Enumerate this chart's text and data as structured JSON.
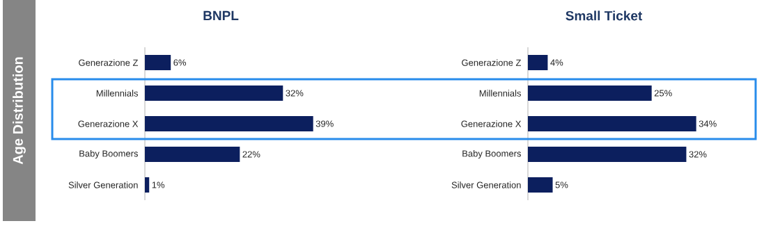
{
  "chart_data": [
    {
      "type": "bar",
      "title": "BNPL",
      "ylabel": "Age Distribution",
      "orientation": "horizontal",
      "color": "#0c1f5e",
      "categories": [
        "Generazione Z",
        "Millennials",
        "Generazione X",
        "Baby Boomers",
        "Silver Generation"
      ],
      "values": [
        6,
        32,
        39,
        22,
        1
      ],
      "value_labels": [
        "6%",
        "32%",
        "39%",
        "22%",
        "1%"
      ]
    },
    {
      "type": "bar",
      "title": "Small Ticket",
      "orientation": "horizontal",
      "color": "#0c1f5e",
      "categories": [
        "Generazione Z",
        "Millennials",
        "Generazione X",
        "Baby Boomers",
        "Silver Generation"
      ],
      "values": [
        4,
        25,
        34,
        32,
        5
      ],
      "value_labels": [
        "4%",
        "25%",
        "34%",
        "32%",
        "5%"
      ]
    }
  ]
}
